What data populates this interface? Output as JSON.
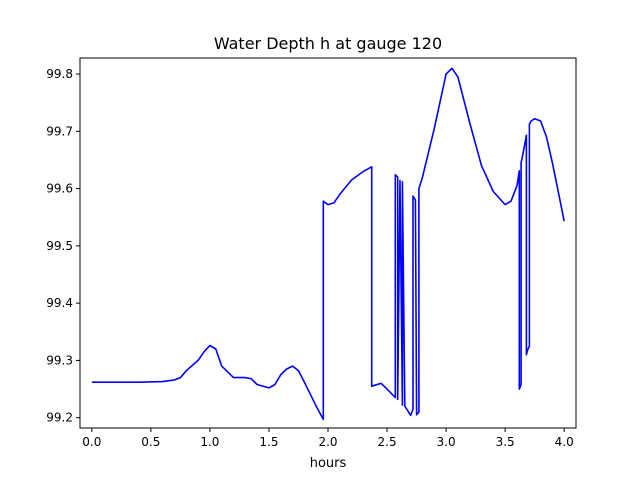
{
  "chart_data": {
    "type": "line",
    "title": "Water Depth h at gauge 120",
    "xlabel": "hours",
    "ylabel": "",
    "xlim": [
      -0.1,
      4.1
    ],
    "ylim": [
      99.182,
      99.828
    ],
    "xticks": [
      0.0,
      0.5,
      1.0,
      1.5,
      2.0,
      2.5,
      3.0,
      3.5,
      4.0
    ],
    "xtick_labels": [
      "0.0",
      "0.5",
      "1.0",
      "1.5",
      "2.0",
      "2.5",
      "3.0",
      "3.5",
      "4.0"
    ],
    "yticks": [
      99.2,
      99.3,
      99.4,
      99.5,
      99.6,
      99.7,
      99.8
    ],
    "ytick_labels": [
      "99.2",
      "99.3",
      "99.4",
      "99.5",
      "99.6",
      "99.7",
      "99.8"
    ],
    "grid": false,
    "series": [
      {
        "color": "#0000ff",
        "x": [
          0.0,
          0.2,
          0.4,
          0.6,
          0.7,
          0.75,
          0.8,
          0.9,
          0.95,
          1.0,
          1.05,
          1.1,
          1.2,
          1.3,
          1.35,
          1.4,
          1.5,
          1.55,
          1.6,
          1.65,
          1.7,
          1.75,
          1.8,
          1.9,
          1.96,
          1.96,
          2.0,
          2.05,
          2.1,
          2.2,
          2.3,
          2.37,
          2.37,
          2.45,
          2.5,
          2.57,
          2.57,
          2.59,
          2.59,
          2.61,
          2.61,
          2.63,
          2.63,
          2.65,
          2.7,
          2.72,
          2.72,
          2.74,
          2.75,
          2.77,
          2.77,
          2.8,
          2.9,
          3.0,
          3.05,
          3.1,
          3.2,
          3.3,
          3.4,
          3.5,
          3.55,
          3.6,
          3.62,
          3.62,
          3.635,
          3.635,
          3.65,
          3.68,
          3.68,
          3.69,
          3.705,
          3.705,
          3.72,
          3.75,
          3.8,
          3.85,
          3.9,
          4.0
        ],
        "y": [
          99.262,
          99.262,
          99.262,
          99.263,
          99.266,
          99.27,
          99.282,
          99.3,
          99.315,
          99.326,
          99.32,
          99.29,
          99.27,
          99.27,
          99.268,
          99.258,
          99.252,
          99.258,
          99.275,
          99.285,
          99.29,
          99.282,
          99.262,
          99.22,
          99.197,
          99.578,
          99.572,
          99.575,
          99.59,
          99.615,
          99.63,
          99.638,
          99.255,
          99.26,
          99.25,
          99.235,
          99.624,
          99.62,
          99.232,
          99.614,
          99.608,
          99.222,
          99.612,
          99.22,
          99.204,
          99.215,
          99.587,
          99.58,
          99.205,
          99.21,
          99.6,
          99.62,
          99.705,
          99.8,
          99.81,
          99.795,
          99.715,
          99.64,
          99.595,
          99.572,
          99.578,
          99.605,
          99.631,
          99.25,
          99.258,
          99.645,
          99.66,
          99.693,
          99.31,
          99.318,
          99.325,
          99.712,
          99.718,
          99.722,
          99.718,
          99.69,
          99.645,
          99.543
        ]
      }
    ]
  }
}
